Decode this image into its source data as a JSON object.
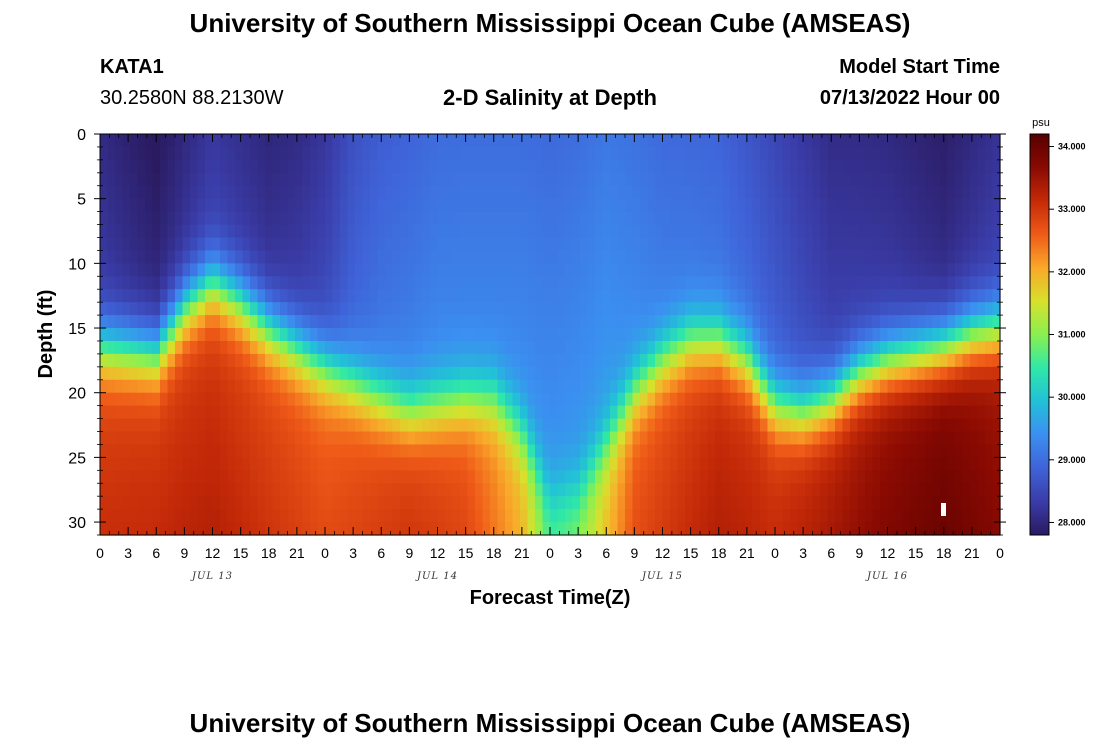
{
  "header": {
    "title": "University of Southern Mississippi Ocean Cube (AMSEAS)",
    "station": "KATA1",
    "coords": "30.2580N  88.2130W",
    "chart_title": "2-D Salinity at Depth",
    "model_start_label": "Model Start Time",
    "model_start_value": "07/13/2022 Hour 00"
  },
  "footer": {
    "title": "University of Southern Mississippi Ocean Cube (AMSEAS)"
  },
  "chart_data": {
    "type": "heatmap",
    "title": "2-D Salinity at Depth",
    "xlabel": "Forecast Time(Z)",
    "ylabel": "Depth (ft)",
    "x_tick_labels": [
      "0",
      "3",
      "6",
      "9",
      "12",
      "15",
      "18",
      "21",
      "0",
      "3",
      "6",
      "9",
      "12",
      "15",
      "18",
      "21",
      "0",
      "3",
      "6",
      "9",
      "12",
      "15",
      "18",
      "21",
      "0",
      "3",
      "6",
      "9",
      "12",
      "15",
      "18",
      "21",
      "0"
    ],
    "x_hours": [
      0,
      3,
      6,
      9,
      12,
      15,
      18,
      21,
      24,
      27,
      30,
      33,
      36,
      39,
      42,
      45,
      48,
      51,
      54,
      57,
      60,
      63,
      66,
      69,
      72,
      75,
      78,
      81,
      84,
      87,
      90,
      93,
      96
    ],
    "date_labels": [
      {
        "label": "JUL 13",
        "hour": 12
      },
      {
        "label": "JUL 14",
        "hour": 36
      },
      {
        "label": "JUL 15",
        "hour": 60
      },
      {
        "label": "JUL 16",
        "hour": 84
      }
    ],
    "xlim": [
      0,
      96
    ],
    "y_ticks": [
      0,
      5,
      10,
      15,
      20,
      25,
      30
    ],
    "ylim": [
      0,
      31
    ],
    "colorbar": {
      "units": "psu",
      "range": [
        27.8,
        34.2
      ],
      "ticks": [
        "28.000",
        "29.000",
        "30.000",
        "31.000",
        "32.000",
        "33.000",
        "34.000"
      ],
      "tick_values": [
        28,
        29,
        30,
        31,
        32,
        33,
        34
      ],
      "colors": [
        "#2a1a60",
        "#3a3ca8",
        "#3f63d8",
        "#3b8ff0",
        "#22c0d8",
        "#2fe8a8",
        "#8af050",
        "#d8e02c",
        "#f9a82a",
        "#ef5a18",
        "#c42a08",
        "#8a0a02",
        "#560000"
      ]
    },
    "halocline_depth_ft": [
      {
        "hour": 0,
        "depth": 16.5
      },
      {
        "hour": 6,
        "depth": 17.0
      },
      {
        "hour": 9,
        "depth": 13.5
      },
      {
        "hour": 12,
        "depth": 11.5
      },
      {
        "hour": 15,
        "depth": 13.0
      },
      {
        "hour": 18,
        "depth": 15.0
      },
      {
        "hour": 21,
        "depth": 16.5
      },
      {
        "hour": 24,
        "depth": 18.0
      },
      {
        "hour": 30,
        "depth": 20.5
      },
      {
        "hour": 33,
        "depth": 21.5
      },
      {
        "hour": 36,
        "depth": 21.0
      },
      {
        "hour": 39,
        "depth": 20.5
      },
      {
        "hour": 42,
        "depth": 20.5
      },
      {
        "hour": 45,
        "depth": 23.0
      },
      {
        "hour": 48,
        "depth": 28.0
      },
      {
        "hour": 51,
        "depth": 27.5
      },
      {
        "hour": 54,
        "depth": 24.0
      },
      {
        "hour": 57,
        "depth": 20.0
      },
      {
        "hour": 60,
        "depth": 17.5
      },
      {
        "hour": 63,
        "depth": 16.0
      },
      {
        "hour": 66,
        "depth": 16.0
      },
      {
        "hour": 69,
        "depth": 17.5
      },
      {
        "hour": 72,
        "depth": 21.0
      },
      {
        "hour": 75,
        "depth": 21.5
      },
      {
        "hour": 78,
        "depth": 20.5
      },
      {
        "hour": 81,
        "depth": 18.5
      },
      {
        "hour": 84,
        "depth": 17.5
      },
      {
        "hour": 87,
        "depth": 17.0
      },
      {
        "hour": 90,
        "depth": 16.5
      },
      {
        "hour": 93,
        "depth": 15.5
      },
      {
        "hour": 96,
        "depth": 15.0
      }
    ],
    "surface_salinity_psu": [
      {
        "hour": 0,
        "value": 28.4
      },
      {
        "hour": 6,
        "value": 28.1
      },
      {
        "hour": 12,
        "value": 28.5
      },
      {
        "hour": 15,
        "value": 28.4
      },
      {
        "hour": 18,
        "value": 28.3
      },
      {
        "hour": 21,
        "value": 28.4
      },
      {
        "hour": 24,
        "value": 28.6
      },
      {
        "hour": 27,
        "value": 29.0
      },
      {
        "hour": 30,
        "value": 29.2
      },
      {
        "hour": 36,
        "value": 29.4
      },
      {
        "hour": 42,
        "value": 29.4
      },
      {
        "hour": 48,
        "value": 29.5
      },
      {
        "hour": 54,
        "value": 29.6
      },
      {
        "hour": 60,
        "value": 29.3
      },
      {
        "hour": 66,
        "value": 29.2
      },
      {
        "hour": 72,
        "value": 28.9
      },
      {
        "hour": 78,
        "value": 28.5
      },
      {
        "hour": 84,
        "value": 28.4
      },
      {
        "hour": 90,
        "value": 28.2
      },
      {
        "hour": 96,
        "value": 28.5
      }
    ],
    "bottom_salinity_psu": [
      {
        "hour": 0,
        "value": 32.8
      },
      {
        "hour": 12,
        "value": 32.9
      },
      {
        "hour": 24,
        "value": 32.5
      },
      {
        "hour": 33,
        "value": 32.8
      },
      {
        "hour": 39,
        "value": 32.6
      },
      {
        "hour": 45,
        "value": 31.8
      },
      {
        "hour": 48,
        "value": 30.6
      },
      {
        "hour": 51,
        "value": 30.9
      },
      {
        "hour": 57,
        "value": 32.5
      },
      {
        "hour": 66,
        "value": 33.0
      },
      {
        "hour": 72,
        "value": 32.9
      },
      {
        "hour": 84,
        "value": 33.5
      },
      {
        "hour": 90,
        "value": 33.7
      },
      {
        "hour": 96,
        "value": 33.4
      }
    ]
  }
}
